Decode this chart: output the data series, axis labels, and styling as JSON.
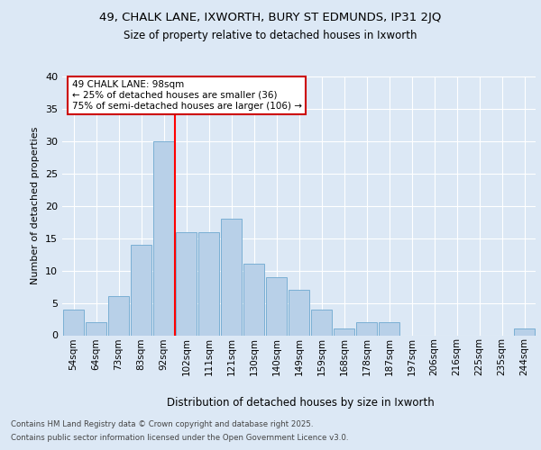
{
  "title_line1": "49, CHALK LANE, IXWORTH, BURY ST EDMUNDS, IP31 2JQ",
  "title_line2": "Size of property relative to detached houses in Ixworth",
  "xlabel": "Distribution of detached houses by size in Ixworth",
  "ylabel": "Number of detached properties",
  "categories": [
    "54sqm",
    "64sqm",
    "73sqm",
    "83sqm",
    "92sqm",
    "102sqm",
    "111sqm",
    "121sqm",
    "130sqm",
    "140sqm",
    "149sqm",
    "159sqm",
    "168sqm",
    "178sqm",
    "187sqm",
    "197sqm",
    "206sqm",
    "216sqm",
    "225sqm",
    "235sqm",
    "244sqm"
  ],
  "values": [
    4,
    2,
    6,
    14,
    30,
    16,
    16,
    18,
    11,
    9,
    7,
    4,
    1,
    2,
    2,
    0,
    0,
    0,
    0,
    0,
    1
  ],
  "bar_color": "#b8d0e8",
  "bar_edgecolor": "#7aafd4",
  "redline_x": 4.5,
  "annotation_title": "49 CHALK LANE: 98sqm",
  "annotation_line2": "← 25% of detached houses are smaller (36)",
  "annotation_line3": "75% of semi-detached houses are larger (106) →",
  "annotation_box_color": "#ffffff",
  "annotation_box_edgecolor": "#cc0000",
  "footnote1": "Contains HM Land Registry data © Crown copyright and database right 2025.",
  "footnote2": "Contains public sector information licensed under the Open Government Licence v3.0.",
  "bg_color": "#dce8f5",
  "plot_bg_color": "#dce8f5",
  "grid_color": "#ffffff",
  "ylim": [
    0,
    40
  ],
  "yticks": [
    0,
    5,
    10,
    15,
    20,
    25,
    30,
    35,
    40
  ]
}
